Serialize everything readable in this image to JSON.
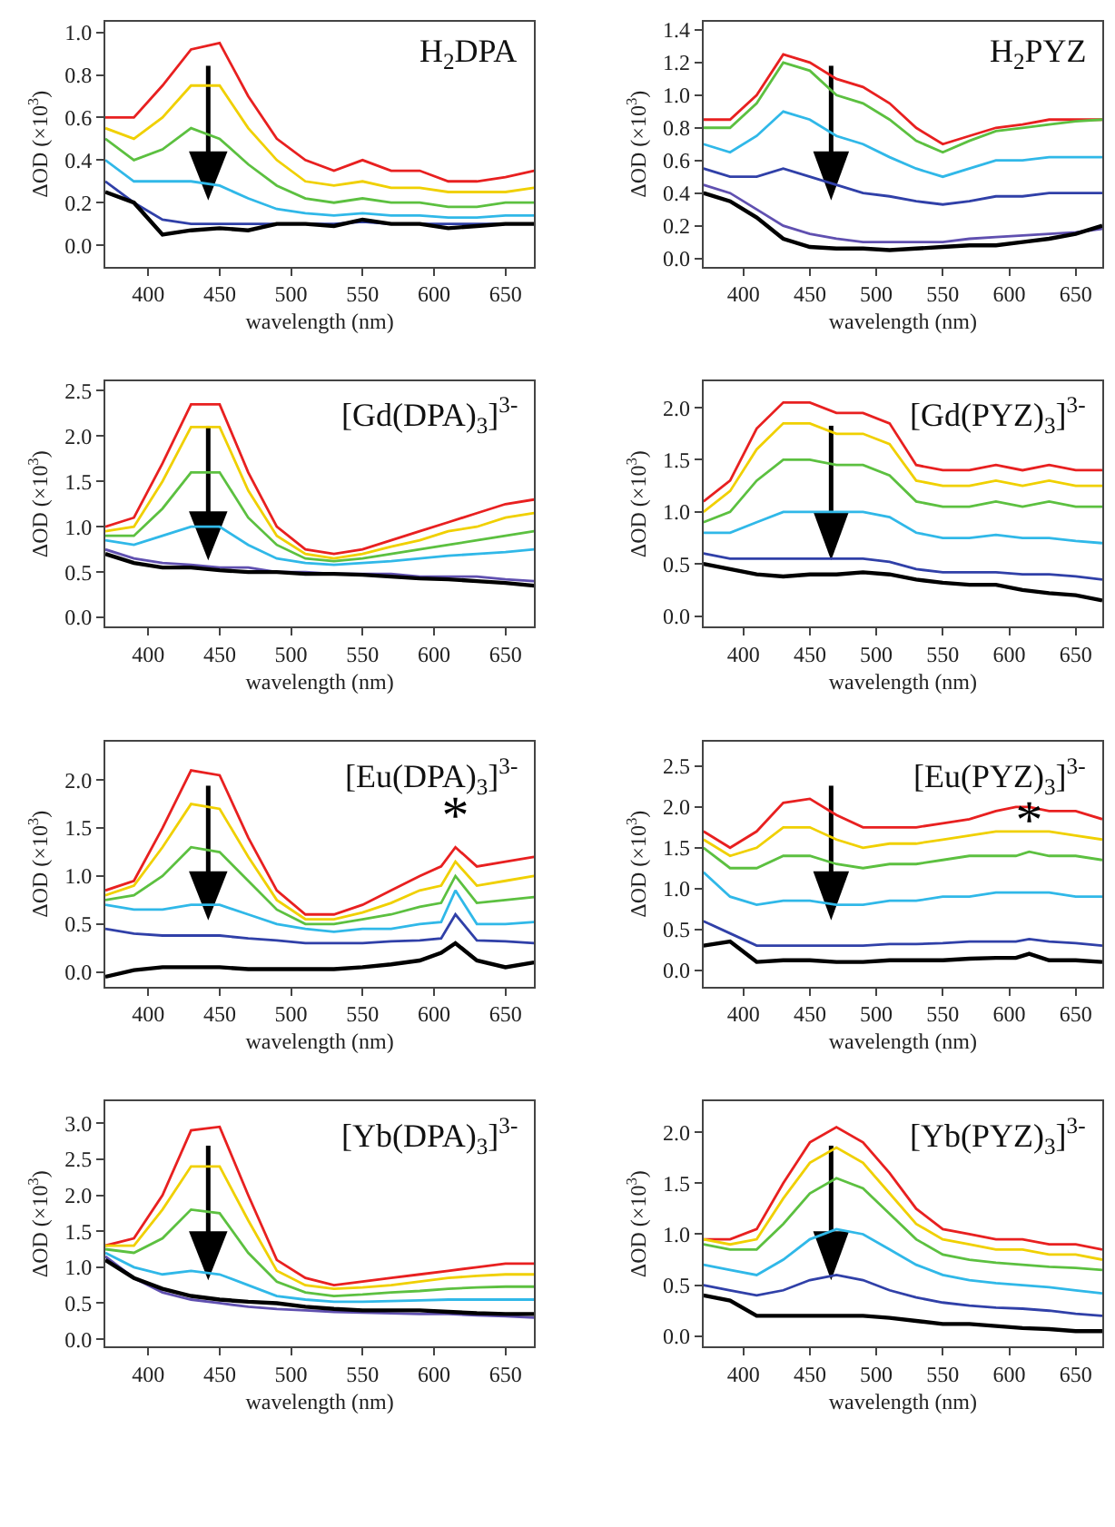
{
  "chart_data": [
    {
      "type": "line",
      "title": "H$_{2}$DPA",
      "xlabel": "wavelength (nm)",
      "ylabel": "ΔOD (×10$^{3}$)",
      "grid": false,
      "marker": "none",
      "line_style": "solid",
      "x": [
        370,
        390,
        410,
        430,
        450,
        470,
        490,
        510,
        530,
        550,
        570,
        590,
        610,
        630,
        650,
        670
      ],
      "xlim": [
        370,
        670
      ],
      "xticks": [
        400,
        450,
        500,
        550,
        600,
        650
      ],
      "ylim": [
        -0.1,
        1.05
      ],
      "yticks": [
        {
          "value": 0,
          "label": "0.0"
        },
        {
          "value": 0.2,
          "label": "0.2"
        },
        {
          "value": 0.4,
          "label": "0.4"
        },
        {
          "value": 0.6,
          "label": "0.6"
        },
        {
          "value": 0.8,
          "label": "0.8"
        },
        {
          "value": 1,
          "label": "1.0"
        }
      ],
      "series": [
        {
          "color": "#e82020",
          "values": [
            0.6,
            0.6,
            0.75,
            0.92,
            0.95,
            0.7,
            0.5,
            0.4,
            0.35,
            0.4,
            0.35,
            0.35,
            0.3,
            0.3,
            0.32,
            0.35
          ]
        },
        {
          "color": "#f0d000",
          "values": [
            0.55,
            0.5,
            0.6,
            0.75,
            0.75,
            0.55,
            0.4,
            0.3,
            0.28,
            0.3,
            0.27,
            0.27,
            0.25,
            0.25,
            0.25,
            0.27
          ]
        },
        {
          "color": "#5cc040",
          "values": [
            0.5,
            0.4,
            0.45,
            0.55,
            0.5,
            0.38,
            0.28,
            0.22,
            0.2,
            0.22,
            0.2,
            0.2,
            0.18,
            0.18,
            0.2,
            0.2
          ]
        },
        {
          "color": "#30b8e8",
          "values": [
            0.4,
            0.3,
            0.3,
            0.3,
            0.28,
            0.22,
            0.17,
            0.15,
            0.14,
            0.15,
            0.14,
            0.14,
            0.13,
            0.13,
            0.14,
            0.14
          ]
        },
        {
          "color": "#3040a8",
          "values": [
            0.3,
            0.2,
            0.12,
            0.1,
            0.1,
            0.1,
            0.1,
            0.1,
            0.1,
            0.11,
            0.1,
            0.1,
            0.1,
            0.1,
            0.1,
            0.1
          ]
        },
        {
          "color": "#000000",
          "values": [
            0.25,
            0.2,
            0.05,
            0.07,
            0.08,
            0.07,
            0.1,
            0.1,
            0.09,
            0.12,
            0.1,
            0.1,
            0.08,
            0.09,
            0.1,
            0.1
          ]
        }
      ]
    },
    {
      "type": "line",
      "title": "H$_{2}$PYZ",
      "xlabel": "wavelength (nm)",
      "ylabel": "ΔOD (×10$^{3}$)",
      "grid": false,
      "marker": "none",
      "line_style": "solid",
      "x": [
        370,
        390,
        410,
        430,
        450,
        470,
        490,
        510,
        530,
        550,
        570,
        590,
        610,
        630,
        650,
        670
      ],
      "xlim": [
        370,
        670
      ],
      "xticks": [
        400,
        450,
        500,
        550,
        600,
        650
      ],
      "ylim": [
        -0.05,
        1.45
      ],
      "yticks": [
        {
          "value": 0,
          "label": "0.0"
        },
        {
          "value": 0.2,
          "label": "0.2"
        },
        {
          "value": 0.4,
          "label": "0.4"
        },
        {
          "value": 0.6,
          "label": "0.6"
        },
        {
          "value": 0.8,
          "label": "0.8"
        },
        {
          "value": 1,
          "label": "1.0"
        },
        {
          "value": 1.2,
          "label": "1.2"
        },
        {
          "value": 1.4,
          "label": "1.4"
        }
      ],
      "series": [
        {
          "color": "#e82020",
          "values": [
            0.85,
            0.85,
            1.0,
            1.25,
            1.2,
            1.1,
            1.05,
            0.95,
            0.8,
            0.7,
            0.75,
            0.8,
            0.82,
            0.85,
            0.85,
            0.85
          ]
        },
        {
          "color": "#5cc040",
          "values": [
            0.8,
            0.8,
            0.95,
            1.2,
            1.15,
            1.0,
            0.95,
            0.85,
            0.72,
            0.65,
            0.72,
            0.78,
            0.8,
            0.82,
            0.84,
            0.85
          ]
        },
        {
          "color": "#30b8e8",
          "values": [
            0.7,
            0.65,
            0.75,
            0.9,
            0.85,
            0.75,
            0.7,
            0.62,
            0.55,
            0.5,
            0.55,
            0.6,
            0.6,
            0.62,
            0.62,
            0.62
          ]
        },
        {
          "color": "#3040a8",
          "values": [
            0.55,
            0.5,
            0.5,
            0.55,
            0.5,
            0.45,
            0.4,
            0.38,
            0.35,
            0.33,
            0.35,
            0.38,
            0.38,
            0.4,
            0.4,
            0.4
          ]
        },
        {
          "color": "#6050b0",
          "values": [
            0.45,
            0.4,
            0.3,
            0.2,
            0.15,
            0.12,
            0.1,
            0.1,
            0.1,
            0.1,
            0.12,
            0.13,
            0.14,
            0.15,
            0.16,
            0.18
          ]
        },
        {
          "color": "#000000",
          "values": [
            0.4,
            0.35,
            0.25,
            0.12,
            0.07,
            0.06,
            0.06,
            0.05,
            0.06,
            0.07,
            0.08,
            0.08,
            0.1,
            0.12,
            0.15,
            0.2
          ]
        }
      ]
    },
    {
      "type": "line",
      "title": "[Gd(DPA)$_{3}$]$^{3-}$",
      "xlabel": "wavelength (nm)",
      "ylabel": "ΔOD (×10$^{3}$)",
      "grid": false,
      "marker": "none",
      "line_style": "solid",
      "x": [
        370,
        390,
        410,
        430,
        450,
        470,
        490,
        510,
        530,
        550,
        570,
        590,
        610,
        630,
        650,
        670
      ],
      "xlim": [
        370,
        670
      ],
      "xticks": [
        400,
        450,
        500,
        550,
        600,
        650
      ],
      "ylim": [
        -0.1,
        2.6
      ],
      "yticks": [
        {
          "value": 0,
          "label": "0.0"
        },
        {
          "value": 0.5,
          "label": "0.5"
        },
        {
          "value": 1,
          "label": "1.0"
        },
        {
          "value": 1.5,
          "label": "1.5"
        },
        {
          "value": 2,
          "label": "2.0"
        },
        {
          "value": 2.5,
          "label": "2.5"
        }
      ],
      "series": [
        {
          "color": "#e82020",
          "values": [
            1.0,
            1.1,
            1.7,
            2.35,
            2.35,
            1.6,
            1.0,
            0.75,
            0.7,
            0.75,
            0.85,
            0.95,
            1.05,
            1.15,
            1.25,
            1.3
          ]
        },
        {
          "color": "#f0d000",
          "values": [
            0.95,
            1.0,
            1.5,
            2.1,
            2.1,
            1.4,
            0.9,
            0.7,
            0.65,
            0.7,
            0.78,
            0.85,
            0.95,
            1.0,
            1.1,
            1.15
          ]
        },
        {
          "color": "#5cc040",
          "values": [
            0.9,
            0.9,
            1.2,
            1.6,
            1.6,
            1.1,
            0.8,
            0.65,
            0.62,
            0.65,
            0.7,
            0.75,
            0.8,
            0.85,
            0.9,
            0.95
          ]
        },
        {
          "color": "#30b8e8",
          "values": [
            0.85,
            0.8,
            0.9,
            1.0,
            1.0,
            0.8,
            0.65,
            0.6,
            0.58,
            0.6,
            0.62,
            0.65,
            0.68,
            0.7,
            0.72,
            0.75
          ]
        },
        {
          "color": "#6050b0",
          "values": [
            0.75,
            0.65,
            0.6,
            0.58,
            0.55,
            0.55,
            0.5,
            0.5,
            0.48,
            0.48,
            0.48,
            0.45,
            0.45,
            0.45,
            0.42,
            0.4
          ]
        },
        {
          "color": "#000000",
          "values": [
            0.7,
            0.6,
            0.55,
            0.55,
            0.52,
            0.5,
            0.5,
            0.48,
            0.48,
            0.47,
            0.45,
            0.43,
            0.42,
            0.4,
            0.38,
            0.35
          ]
        }
      ]
    },
    {
      "type": "line",
      "title": "[Gd(PYZ)$_{3}$]$^{3-}$",
      "xlabel": "wavelength (nm)",
      "ylabel": "ΔOD (×10$^{3}$)",
      "grid": false,
      "marker": "none",
      "line_style": "solid",
      "x": [
        370,
        390,
        410,
        430,
        450,
        470,
        490,
        510,
        530,
        550,
        570,
        590,
        610,
        630,
        650,
        670
      ],
      "xlim": [
        370,
        670
      ],
      "xticks": [
        400,
        450,
        500,
        550,
        600,
        650
      ],
      "ylim": [
        -0.1,
        2.25
      ],
      "yticks": [
        {
          "value": 0,
          "label": "0.0"
        },
        {
          "value": 0.5,
          "label": "0.5"
        },
        {
          "value": 1,
          "label": "1.0"
        },
        {
          "value": 1.5,
          "label": "1.5"
        },
        {
          "value": 2,
          "label": "2.0"
        }
      ],
      "series": [
        {
          "color": "#e82020",
          "values": [
            1.1,
            1.3,
            1.8,
            2.05,
            2.05,
            1.95,
            1.95,
            1.85,
            1.45,
            1.4,
            1.4,
            1.45,
            1.4,
            1.45,
            1.4,
            1.4
          ]
        },
        {
          "color": "#f0d000",
          "values": [
            1.0,
            1.2,
            1.6,
            1.85,
            1.85,
            1.75,
            1.75,
            1.65,
            1.3,
            1.25,
            1.25,
            1.3,
            1.25,
            1.3,
            1.25,
            1.25
          ]
        },
        {
          "color": "#5cc040",
          "values": [
            0.9,
            1.0,
            1.3,
            1.5,
            1.5,
            1.45,
            1.45,
            1.35,
            1.1,
            1.05,
            1.05,
            1.1,
            1.05,
            1.1,
            1.05,
            1.05
          ]
        },
        {
          "color": "#30b8e8",
          "values": [
            0.8,
            0.8,
            0.9,
            1.0,
            1.0,
            1.0,
            1.0,
            0.95,
            0.8,
            0.75,
            0.75,
            0.78,
            0.75,
            0.75,
            0.72,
            0.7
          ]
        },
        {
          "color": "#3040a8",
          "values": [
            0.6,
            0.55,
            0.55,
            0.55,
            0.55,
            0.55,
            0.55,
            0.52,
            0.45,
            0.42,
            0.42,
            0.42,
            0.4,
            0.4,
            0.38,
            0.35
          ]
        },
        {
          "color": "#000000",
          "values": [
            0.5,
            0.45,
            0.4,
            0.38,
            0.4,
            0.4,
            0.42,
            0.4,
            0.35,
            0.32,
            0.3,
            0.3,
            0.25,
            0.22,
            0.2,
            0.15
          ]
        }
      ]
    },
    {
      "type": "line",
      "title": "[Eu(DPA)$_{3}$]$^{3-}$",
      "xlabel": "wavelength (nm)",
      "ylabel": "ΔOD (×10$^{3}$)",
      "grid": false,
      "marker": "none",
      "line_style": "solid",
      "x": [
        370,
        390,
        410,
        430,
        450,
        470,
        490,
        510,
        530,
        550,
        570,
        590,
        605,
        615,
        630,
        650,
        670
      ],
      "xlim": [
        370,
        670
      ],
      "xticks": [
        400,
        450,
        500,
        550,
        600,
        650
      ],
      "ylim": [
        -0.15,
        2.4
      ],
      "yticks": [
        {
          "value": 0,
          "label": "0.0"
        },
        {
          "value": 0.5,
          "label": "0.5"
        },
        {
          "value": 1,
          "label": "1.0"
        },
        {
          "value": 1.5,
          "label": "1.5"
        },
        {
          "value": 2,
          "label": "2.0"
        }
      ],
      "annotations": [
        {
          "text": "*",
          "x": 615,
          "y": 1.3
        }
      ],
      "series": [
        {
          "color": "#e82020",
          "values": [
            0.85,
            0.95,
            1.5,
            2.1,
            2.05,
            1.4,
            0.85,
            0.6,
            0.6,
            0.7,
            0.85,
            1.0,
            1.1,
            1.3,
            1.1,
            1.15,
            1.2
          ]
        },
        {
          "color": "#f0d000",
          "values": [
            0.8,
            0.9,
            1.3,
            1.75,
            1.7,
            1.2,
            0.75,
            0.55,
            0.55,
            0.62,
            0.72,
            0.85,
            0.9,
            1.15,
            0.9,
            0.95,
            1.0
          ]
        },
        {
          "color": "#5cc040",
          "values": [
            0.75,
            0.8,
            1.0,
            1.3,
            1.25,
            0.95,
            0.65,
            0.5,
            0.5,
            0.55,
            0.6,
            0.68,
            0.72,
            1.0,
            0.72,
            0.75,
            0.78
          ]
        },
        {
          "color": "#30b8e8",
          "values": [
            0.7,
            0.65,
            0.65,
            0.7,
            0.7,
            0.6,
            0.5,
            0.45,
            0.42,
            0.45,
            0.45,
            0.5,
            0.52,
            0.85,
            0.5,
            0.5,
            0.52
          ]
        },
        {
          "color": "#3040a8",
          "values": [
            0.45,
            0.4,
            0.38,
            0.38,
            0.38,
            0.35,
            0.33,
            0.3,
            0.3,
            0.3,
            0.32,
            0.33,
            0.35,
            0.6,
            0.33,
            0.32,
            0.3
          ]
        },
        {
          "color": "#000000",
          "values": [
            -0.05,
            0.02,
            0.05,
            0.05,
            0.05,
            0.03,
            0.03,
            0.03,
            0.03,
            0.05,
            0.08,
            0.12,
            0.2,
            0.3,
            0.12,
            0.05,
            0.1
          ]
        }
      ]
    },
    {
      "type": "line",
      "title": "[Eu(PYZ)$_{3}$]$^{3-}$",
      "xlabel": "wavelength (nm)",
      "ylabel": "ΔOD (×10$^{3}$)",
      "grid": false,
      "marker": "none",
      "line_style": "solid",
      "x": [
        370,
        390,
        410,
        430,
        450,
        470,
        490,
        510,
        530,
        550,
        570,
        590,
        605,
        615,
        630,
        650,
        670
      ],
      "xlim": [
        370,
        670
      ],
      "xticks": [
        400,
        450,
        500,
        550,
        600,
        650
      ],
      "ylim": [
        -0.2,
        2.8
      ],
      "yticks": [
        {
          "value": 0,
          "label": "0.0"
        },
        {
          "value": 0.5,
          "label": "0.5"
        },
        {
          "value": 1,
          "label": "1.0"
        },
        {
          "value": 1.5,
          "label": "1.5"
        },
        {
          "value": 2,
          "label": "2.0"
        },
        {
          "value": 2.5,
          "label": "2.5"
        }
      ],
      "annotations": [
        {
          "text": "*",
          "x": 615,
          "y": 1.45
        }
      ],
      "series": [
        {
          "color": "#e82020",
          "values": [
            1.7,
            1.5,
            1.7,
            2.05,
            2.1,
            1.9,
            1.75,
            1.75,
            1.75,
            1.8,
            1.85,
            1.95,
            2.0,
            2.0,
            1.95,
            1.95,
            1.85
          ]
        },
        {
          "color": "#f0d000",
          "values": [
            1.6,
            1.4,
            1.5,
            1.75,
            1.75,
            1.6,
            1.5,
            1.55,
            1.55,
            1.6,
            1.65,
            1.7,
            1.7,
            1.7,
            1.7,
            1.65,
            1.6
          ]
        },
        {
          "color": "#5cc040",
          "values": [
            1.5,
            1.25,
            1.25,
            1.4,
            1.4,
            1.3,
            1.25,
            1.3,
            1.3,
            1.35,
            1.4,
            1.4,
            1.4,
            1.45,
            1.4,
            1.4,
            1.35
          ]
        },
        {
          "color": "#30b8e8",
          "values": [
            1.2,
            0.9,
            0.8,
            0.85,
            0.85,
            0.8,
            0.8,
            0.85,
            0.85,
            0.9,
            0.9,
            0.95,
            0.95,
            0.95,
            0.95,
            0.9,
            0.9
          ]
        },
        {
          "color": "#3040a8",
          "values": [
            0.6,
            0.45,
            0.3,
            0.3,
            0.3,
            0.3,
            0.3,
            0.32,
            0.32,
            0.33,
            0.35,
            0.35,
            0.35,
            0.38,
            0.35,
            0.33,
            0.3
          ]
        },
        {
          "color": "#000000",
          "values": [
            0.3,
            0.35,
            0.1,
            0.12,
            0.12,
            0.1,
            0.1,
            0.12,
            0.12,
            0.12,
            0.14,
            0.15,
            0.15,
            0.2,
            0.12,
            0.12,
            0.1
          ]
        }
      ]
    },
    {
      "type": "line",
      "title": "[Yb(DPA)$_{3}$]$^{3-}$",
      "xlabel": "wavelength (nm)",
      "ylabel": "ΔOD (×10$^{3}$)",
      "grid": false,
      "marker": "none",
      "line_style": "solid",
      "x": [
        370,
        390,
        410,
        430,
        450,
        470,
        490,
        510,
        530,
        550,
        570,
        590,
        610,
        630,
        650,
        670
      ],
      "xlim": [
        370,
        670
      ],
      "xticks": [
        400,
        450,
        500,
        550,
        600,
        650
      ],
      "ylim": [
        -0.1,
        3.3
      ],
      "yticks": [
        {
          "value": 0,
          "label": "0.0"
        },
        {
          "value": 0.5,
          "label": "0.5"
        },
        {
          "value": 1,
          "label": "1.0"
        },
        {
          "value": 1.5,
          "label": "1.5"
        },
        {
          "value": 2,
          "label": "2.0"
        },
        {
          "value": 2.5,
          "label": "2.5"
        },
        {
          "value": 3,
          "label": "3.0"
        }
      ],
      "series": [
        {
          "color": "#e82020",
          "values": [
            1.3,
            1.4,
            2.0,
            2.9,
            2.95,
            2.0,
            1.1,
            0.85,
            0.75,
            0.8,
            0.85,
            0.9,
            0.95,
            1.0,
            1.05,
            1.05
          ]
        },
        {
          "color": "#f0d000",
          "values": [
            1.3,
            1.3,
            1.8,
            2.4,
            2.4,
            1.65,
            0.95,
            0.75,
            0.7,
            0.72,
            0.75,
            0.8,
            0.85,
            0.88,
            0.9,
            0.9
          ]
        },
        {
          "color": "#5cc040",
          "values": [
            1.25,
            1.2,
            1.4,
            1.8,
            1.75,
            1.2,
            0.8,
            0.65,
            0.6,
            0.62,
            0.65,
            0.67,
            0.7,
            0.72,
            0.73,
            0.73
          ]
        },
        {
          "color": "#30b8e8",
          "values": [
            1.2,
            1.0,
            0.9,
            0.95,
            0.9,
            0.75,
            0.6,
            0.55,
            0.52,
            0.52,
            0.53,
            0.54,
            0.55,
            0.55,
            0.55,
            0.55
          ]
        },
        {
          "color": "#6050b0",
          "values": [
            1.15,
            0.85,
            0.65,
            0.55,
            0.5,
            0.45,
            0.42,
            0.4,
            0.38,
            0.37,
            0.36,
            0.35,
            0.35,
            0.33,
            0.32,
            0.3
          ]
        },
        {
          "color": "#000000",
          "values": [
            1.1,
            0.85,
            0.7,
            0.6,
            0.55,
            0.52,
            0.5,
            0.45,
            0.42,
            0.4,
            0.4,
            0.4,
            0.38,
            0.36,
            0.35,
            0.35
          ]
        }
      ]
    },
    {
      "type": "line",
      "title": "[Yb(PYZ)$_{3}$]$^{3-}$",
      "xlabel": "wavelength (nm)",
      "ylabel": "ΔOD (×10$^{3}$)",
      "grid": false,
      "marker": "none",
      "line_style": "solid",
      "x": [
        370,
        390,
        410,
        430,
        450,
        470,
        490,
        510,
        530,
        550,
        570,
        590,
        610,
        630,
        650,
        670
      ],
      "xlim": [
        370,
        670
      ],
      "xticks": [
        400,
        450,
        500,
        550,
        600,
        650
      ],
      "ylim": [
        -0.1,
        2.3
      ],
      "yticks": [
        {
          "value": 0,
          "label": "0.0"
        },
        {
          "value": 0.5,
          "label": "0.5"
        },
        {
          "value": 1,
          "label": "1.0"
        },
        {
          "value": 1.5,
          "label": "1.5"
        },
        {
          "value": 2,
          "label": "2.0"
        }
      ],
      "series": [
        {
          "color": "#e82020",
          "values": [
            0.95,
            0.95,
            1.05,
            1.5,
            1.9,
            2.05,
            1.9,
            1.6,
            1.25,
            1.05,
            1.0,
            0.95,
            0.95,
            0.9,
            0.9,
            0.85
          ]
        },
        {
          "color": "#f0d000",
          "values": [
            0.95,
            0.9,
            0.95,
            1.35,
            1.7,
            1.85,
            1.7,
            1.4,
            1.1,
            0.95,
            0.9,
            0.85,
            0.85,
            0.8,
            0.8,
            0.75
          ]
        },
        {
          "color": "#5cc040",
          "values": [
            0.9,
            0.85,
            0.85,
            1.1,
            1.4,
            1.55,
            1.45,
            1.2,
            0.95,
            0.8,
            0.75,
            0.72,
            0.7,
            0.68,
            0.67,
            0.65
          ]
        },
        {
          "color": "#30b8e8",
          "values": [
            0.7,
            0.65,
            0.6,
            0.75,
            0.95,
            1.05,
            1.0,
            0.85,
            0.7,
            0.6,
            0.55,
            0.52,
            0.5,
            0.48,
            0.45,
            0.42
          ]
        },
        {
          "color": "#3040a8",
          "values": [
            0.5,
            0.45,
            0.4,
            0.45,
            0.55,
            0.6,
            0.55,
            0.45,
            0.38,
            0.33,
            0.3,
            0.28,
            0.27,
            0.25,
            0.22,
            0.2
          ]
        },
        {
          "color": "#000000",
          "values": [
            0.4,
            0.35,
            0.2,
            0.2,
            0.2,
            0.2,
            0.2,
            0.18,
            0.15,
            0.12,
            0.12,
            0.1,
            0.08,
            0.07,
            0.05,
            0.05
          ]
        }
      ]
    }
  ]
}
